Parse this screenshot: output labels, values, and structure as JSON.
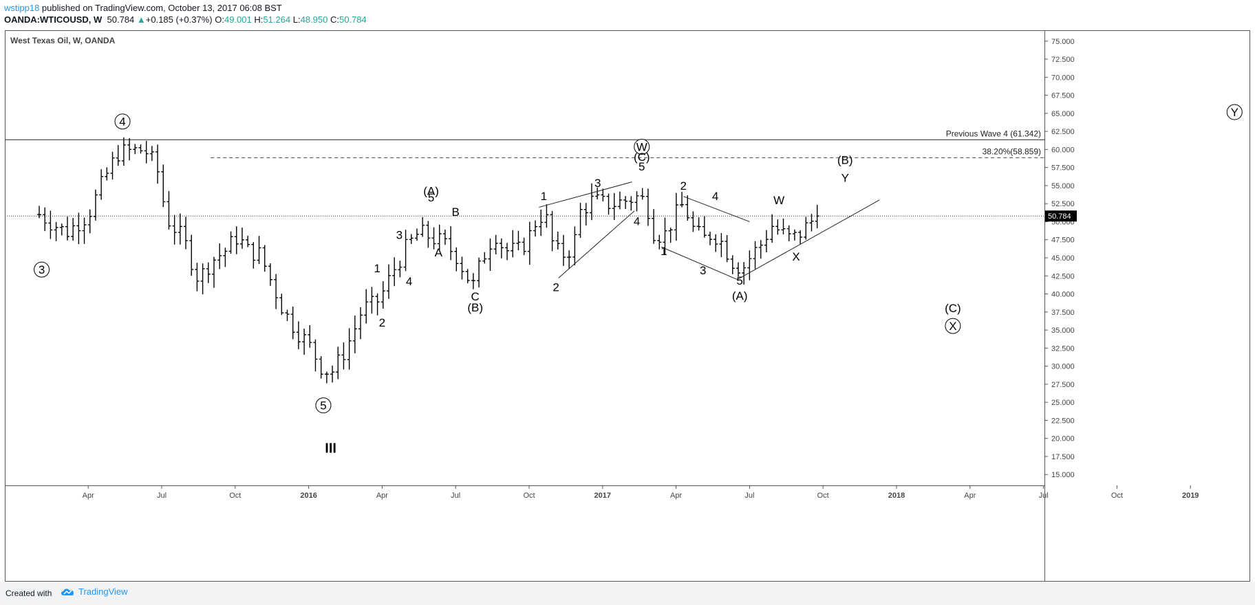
{
  "header": {
    "user": "wstipp18",
    "published": " published on TradingView.com, October 13, 2017 06:08 BST",
    "symbol": "OANDA:WTICOUSD, W",
    "last": "50.784",
    "change_arrow": "▲",
    "change": "+0.185 (+0.37%)",
    "o_label": "O:",
    "o_value": "49.001",
    "h_label": "H:",
    "h_value": "51.264",
    "l_label": "L:",
    "l_value": "48.950",
    "c_label": "C:",
    "c_value": "50.784"
  },
  "footer": {
    "created_with": "Created with",
    "brand": "TradingView",
    "logo_icon": "tradingview-cloud-icon"
  },
  "colors": {
    "up": "#26a69a",
    "accent": "#2196f3",
    "bar": "#000000"
  },
  "chart_data": {
    "type": "bar",
    "title": "West Texas Oil, W, OANDA",
    "y_axis": {
      "min": 13.5,
      "max": 76.5,
      "ticks": [
        "75.000",
        "72.500",
        "70.000",
        "67.500",
        "65.000",
        "62.500",
        "60.000",
        "57.500",
        "55.000",
        "52.500",
        "50.000",
        "47.500",
        "45.000",
        "42.500",
        "40.000",
        "37.500",
        "35.000",
        "32.500",
        "30.000",
        "27.500",
        "25.000",
        "22.500",
        "20.000",
        "17.500",
        "15.000"
      ],
      "last_price_label": "50.784",
      "last_price": 50.784
    },
    "x_axis": {
      "start_month": "2015-02",
      "end_month": "2019-02",
      "ticks": [
        {
          "label": "Apr",
          "m": 2
        },
        {
          "label": "Jul",
          "m": 5
        },
        {
          "label": "Oct",
          "m": 8
        },
        {
          "label": "2016",
          "m": 11
        },
        {
          "label": "Apr",
          "m": 14
        },
        {
          "label": "Jul",
          "m": 17
        },
        {
          "label": "Oct",
          "m": 20
        },
        {
          "label": "2017",
          "m": 23
        },
        {
          "label": "Apr",
          "m": 26
        },
        {
          "label": "Jul",
          "m": 29
        },
        {
          "label": "Oct",
          "m": 32
        },
        {
          "label": "2018",
          "m": 35
        },
        {
          "label": "Apr",
          "m": 38
        },
        {
          "label": "Jul",
          "m": 41
        },
        {
          "label": "Oct",
          "m": 44
        },
        {
          "label": "2019",
          "m": 47
        }
      ]
    },
    "horizontal_lines": [
      {
        "price": 61.342,
        "style": "solid",
        "label": "Previous Wave 4 (61.342)"
      },
      {
        "price": 58.859,
        "style": "dashed",
        "label": "38.20%(58.859)",
        "from_m": 7.0
      },
      {
        "price": 50.784,
        "style": "dotted",
        "label": ""
      }
    ],
    "anchors": [
      {
        "m": 0.0,
        "c": 51.0
      },
      {
        "m": 1.1,
        "c": 48.5
      },
      {
        "m": 2.0,
        "c": 51.0
      },
      {
        "m": 2.6,
        "c": 55.5
      },
      {
        "m": 3.2,
        "c": 59.5
      },
      {
        "m": 3.8,
        "c": 59.8
      },
      {
        "m": 4.3,
        "c": 60.0
      },
      {
        "m": 4.8,
        "c": 57.5
      },
      {
        "m": 5.2,
        "c": 50.5
      },
      {
        "m": 5.9,
        "c": 47.5
      },
      {
        "m": 6.5,
        "c": 42.0
      },
      {
        "m": 7.0,
        "c": 44.5
      },
      {
        "m": 7.6,
        "c": 46.0
      },
      {
        "m": 8.1,
        "c": 48.0
      },
      {
        "m": 8.5,
        "c": 46.0
      },
      {
        "m": 9.0,
        "c": 45.5
      },
      {
        "m": 9.5,
        "c": 41.5
      },
      {
        "m": 10.0,
        "c": 37.5
      },
      {
        "m": 10.5,
        "c": 35.0
      },
      {
        "m": 11.0,
        "c": 33.0
      },
      {
        "m": 11.5,
        "c": 30.0
      },
      {
        "m": 11.9,
        "c": 29.0
      },
      {
        "m": 12.3,
        "c": 31.0
      },
      {
        "m": 12.8,
        "c": 34.5
      },
      {
        "m": 13.2,
        "c": 38.0
      },
      {
        "m": 13.7,
        "c": 38.5
      },
      {
        "m": 14.0,
        "c": 40.0
      },
      {
        "m": 14.5,
        "c": 43.5
      },
      {
        "m": 15.0,
        "c": 46.5
      },
      {
        "m": 15.5,
        "c": 48.5
      },
      {
        "m": 15.9,
        "c": 48.0
      },
      {
        "m": 16.5,
        "c": 47.0
      },
      {
        "m": 17.0,
        "c": 45.5
      },
      {
        "m": 17.3,
        "c": 43.5
      },
      {
        "m": 17.7,
        "c": 41.0
      },
      {
        "m": 18.1,
        "c": 45.0
      },
      {
        "m": 18.6,
        "c": 48.5
      },
      {
        "m": 19.0,
        "c": 46.0
      },
      {
        "m": 19.6,
        "c": 46.0
      },
      {
        "m": 20.0,
        "c": 48.0
      },
      {
        "m": 20.4,
        "c": 51.0
      },
      {
        "m": 20.8,
        "c": 50.0
      },
      {
        "m": 21.0,
        "c": 46.0
      },
      {
        "m": 21.4,
        "c": 45.5
      },
      {
        "m": 21.8,
        "c": 46.5
      },
      {
        "m": 22.1,
        "c": 51.5
      },
      {
        "m": 22.6,
        "c": 53.0
      },
      {
        "m": 23.0,
        "c": 52.5
      },
      {
        "m": 23.5,
        "c": 52.5
      },
      {
        "m": 24.0,
        "c": 53.0
      },
      {
        "m": 24.5,
        "c": 53.5
      },
      {
        "m": 24.8,
        "c": 52.5
      },
      {
        "m": 25.1,
        "c": 48.5
      },
      {
        "m": 25.5,
        "c": 48.0
      },
      {
        "m": 25.9,
        "c": 50.5
      },
      {
        "m": 26.3,
        "c": 52.5
      },
      {
        "m": 26.7,
        "c": 49.0
      },
      {
        "m": 27.1,
        "c": 47.5
      },
      {
        "m": 27.5,
        "c": 48.5
      },
      {
        "m": 27.9,
        "c": 47.0
      },
      {
        "m": 28.3,
        "c": 44.5
      },
      {
        "m": 28.7,
        "c": 43.5
      },
      {
        "m": 29.1,
        "c": 45.5
      },
      {
        "m": 29.5,
        "c": 47.0
      },
      {
        "m": 29.9,
        "c": 49.5
      },
      {
        "m": 30.3,
        "c": 48.5
      },
      {
        "m": 30.7,
        "c": 47.5
      },
      {
        "m": 31.1,
        "c": 48.5
      },
      {
        "m": 31.5,
        "c": 50.0
      },
      {
        "m": 31.8,
        "c": 50.8
      }
    ],
    "labels": [
      {
        "text": "4",
        "m": 3.4,
        "p": 63.3,
        "circle": true
      },
      {
        "text": "3",
        "m": 0.1,
        "p": 42.8,
        "circle": true
      },
      {
        "text": "5",
        "m": 11.6,
        "p": 24.0,
        "circle": true
      },
      {
        "text": "III",
        "m": 11.9,
        "p": 18.0,
        "bold": true
      },
      {
        "text": "1",
        "m": 13.8,
        "p": 43.0
      },
      {
        "text": "2",
        "m": 14.0,
        "p": 35.5
      },
      {
        "text": "3",
        "m": 14.7,
        "p": 47.6
      },
      {
        "text": "4",
        "m": 15.1,
        "p": 41.2
      },
      {
        "text": "(A)",
        "m": 16.0,
        "p": 53.7
      },
      {
        "text": "5",
        "m": 16.0,
        "p": 52.8
      },
      {
        "text": "B",
        "m": 17.0,
        "p": 50.8
      },
      {
        "text": "A",
        "m": 16.3,
        "p": 45.2
      },
      {
        "text": "C",
        "m": 17.8,
        "p": 39.1
      },
      {
        "text": "(B)",
        "m": 17.8,
        "p": 37.6
      },
      {
        "text": "1",
        "m": 20.6,
        "p": 53.0
      },
      {
        "text": "2",
        "m": 21.1,
        "p": 40.4
      },
      {
        "text": "3",
        "m": 22.8,
        "p": 54.8
      },
      {
        "text": "W",
        "m": 24.6,
        "p": 59.8,
        "circle": true
      },
      {
        "text": "(C)",
        "m": 24.6,
        "p": 58.4
      },
      {
        "text": "5",
        "m": 24.6,
        "p": 57.1
      },
      {
        "text": "4",
        "m": 24.4,
        "p": 49.5
      },
      {
        "text": "1",
        "m": 25.5,
        "p": 45.4
      },
      {
        "text": "2",
        "m": 26.3,
        "p": 54.4
      },
      {
        "text": "3",
        "m": 27.1,
        "p": 42.7
      },
      {
        "text": "4",
        "m": 27.6,
        "p": 53.0
      },
      {
        "text": "5",
        "m": 28.6,
        "p": 41.3
      },
      {
        "text": "(A)",
        "m": 28.6,
        "p": 39.2
      },
      {
        "text": "W",
        "m": 30.2,
        "p": 52.4
      },
      {
        "text": "X",
        "m": 30.9,
        "p": 44.6
      },
      {
        "text": "(B)",
        "m": 32.9,
        "p": 58.0
      },
      {
        "text": "Y",
        "m": 32.9,
        "p": 55.5
      },
      {
        "text": "(C)",
        "m": 37.3,
        "p": 37.5
      },
      {
        "text": "X",
        "m": 37.3,
        "p": 35.0,
        "circle": true
      },
      {
        "text": "Y",
        "m": 48.8,
        "p": 64.6,
        "circle": true
      }
    ],
    "trendlines": [
      {
        "m1": 20.4,
        "p1": 52.0,
        "m2": 24.2,
        "p2": 55.5
      },
      {
        "m1": 21.2,
        "p1": 42.2,
        "m2": 24.3,
        "p2": 51.5
      },
      {
        "m1": 25.4,
        "p1": 46.5,
        "m2": 28.5,
        "p2": 42.0
      },
      {
        "m1": 26.3,
        "p1": 53.5,
        "m2": 29.0,
        "p2": 50.0
      },
      {
        "m1": 28.5,
        "p1": 42.0,
        "m2": 34.3,
        "p2": 53.0
      }
    ]
  }
}
